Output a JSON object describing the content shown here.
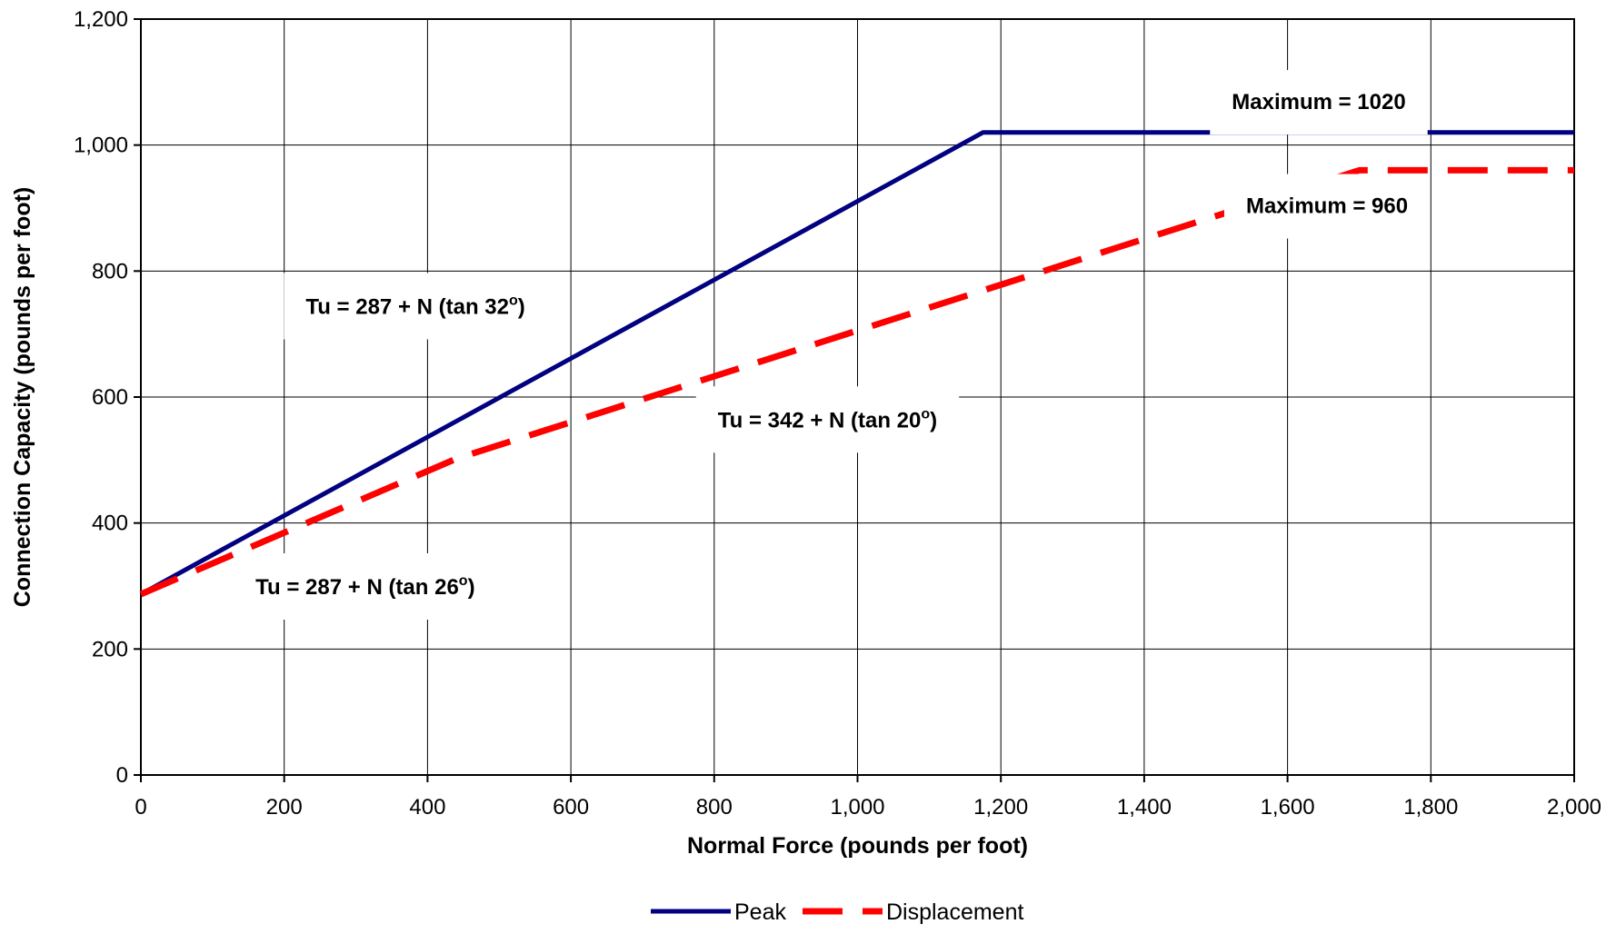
{
  "chart_data": {
    "type": "line",
    "xlabel": "Normal Force (pounds per foot)",
    "ylabel": "Connection Capacity (pounds per foot)",
    "xlim": [
      0,
      2000
    ],
    "ylim": [
      0,
      1200
    ],
    "x_ticks": [
      "0",
      "200",
      "400",
      "600",
      "800",
      "1,000",
      "1,200",
      "1,400",
      "1,600",
      "1,800",
      "2,000"
    ],
    "y_ticks": [
      "0",
      "200",
      "400",
      "600",
      "800",
      "1,000",
      "1,200"
    ],
    "x_tick_values": [
      0,
      200,
      400,
      600,
      800,
      1000,
      1200,
      1400,
      1600,
      1800,
      2000
    ],
    "y_tick_values": [
      0,
      200,
      400,
      600,
      800,
      1000,
      1200
    ],
    "grid": true,
    "legend_position": "bottom-center",
    "series": [
      {
        "name": "Peak",
        "color": "#000080",
        "style": "solid",
        "x": [
          0,
          1175,
          2000
        ],
        "y": [
          287,
          1020,
          1020
        ]
      },
      {
        "name": "Displacement",
        "color": "#ff0000",
        "style": "dashed",
        "x": [
          0,
          440,
          1700,
          2000
        ],
        "y": [
          287,
          502,
          960,
          960
        ]
      }
    ],
    "annotations": [
      {
        "text": "Tu = 287 + N (tan 32",
        "sup": "o",
        "after": ")",
        "x": 230,
        "y": 745
      },
      {
        "text": "Tu = 342 + N (tan 20",
        "sup": "o",
        "after": ")",
        "x": 805,
        "y": 565
      },
      {
        "text": "Tu = 287 + N (tan 26",
        "sup": "o",
        "after": ")",
        "x": 160,
        "y": 300
      },
      {
        "text": "Maximum = 1020",
        "x": 1765,
        "y": 1070,
        "anchor": "end"
      },
      {
        "text": "Maximum = 960",
        "x": 1768,
        "y": 905,
        "anchor": "end"
      }
    ]
  }
}
